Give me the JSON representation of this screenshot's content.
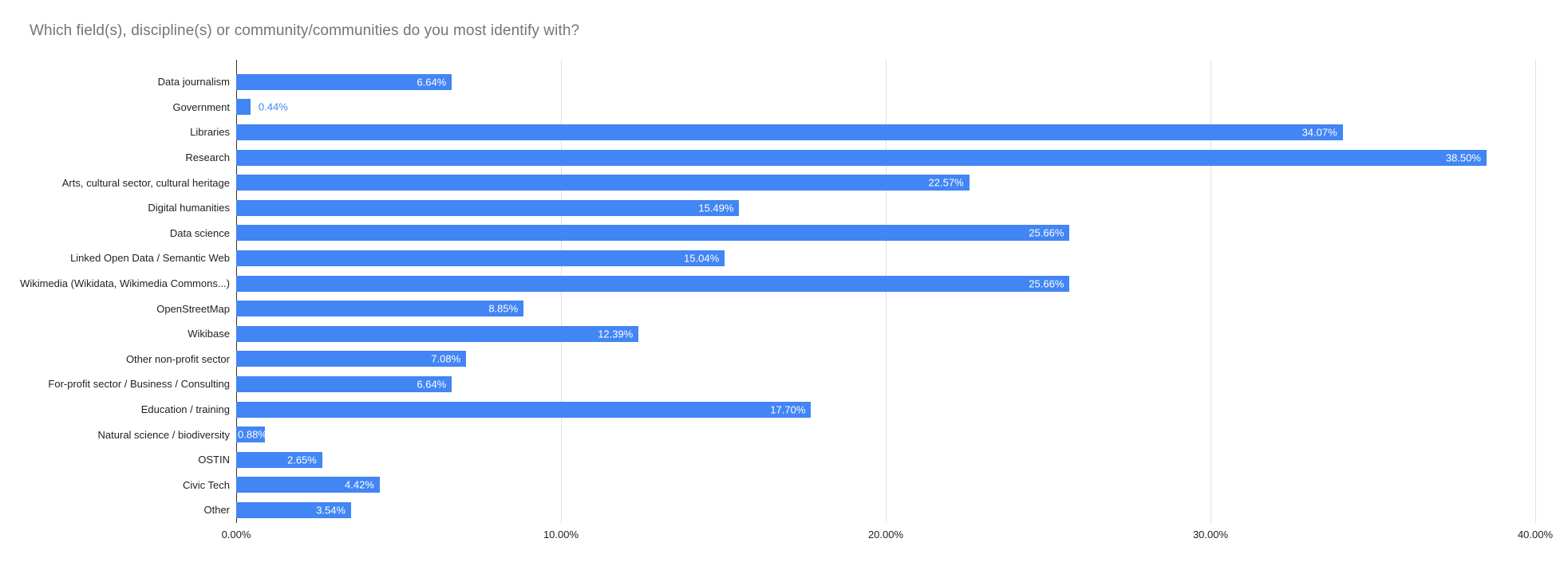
{
  "title": "Which field(s), discipline(s) or community/communities do you most identify with?",
  "colors": {
    "bar": "#4285f4",
    "title": "#757575",
    "gridline": "#e0e0e0",
    "zero_axis": "#333333",
    "inside_label": "#ffffff",
    "outside_label": "#4285f4"
  },
  "chart_data": {
    "type": "bar",
    "orientation": "horizontal",
    "title": "Which field(s), discipline(s) or community/communities do you most identify with?",
    "xlabel": "",
    "ylabel": "",
    "xlim": [
      0,
      40
    ],
    "grid": true,
    "legend": "none",
    "categories": [
      "Data journalism",
      "Government",
      "Libraries",
      "Research",
      "Arts, cultural sector, cultural heritage",
      "Digital humanities",
      "Data science",
      "Linked Open Data / Semantic Web",
      "Wikimedia (Wikidata, Wikimedia Commons...)",
      "OpenStreetMap",
      "Wikibase",
      "Other non-profit sector",
      "For-profit sector / Business / Consulting",
      "Education / training",
      "Natural science / biodiversity",
      "OSTIN",
      "Civic Tech",
      "Other"
    ],
    "values": [
      6.64,
      0.44,
      34.07,
      38.5,
      22.57,
      15.49,
      25.66,
      15.04,
      25.66,
      8.85,
      12.39,
      7.08,
      6.64,
      17.7,
      0.88,
      2.65,
      4.42,
      3.54
    ],
    "value_labels": [
      "6.64%",
      "0.44%",
      "34.07%",
      "38.50%",
      "22.57%",
      "15.49%",
      "25.66%",
      "15.04%",
      "25.66%",
      "8.85%",
      "12.39%",
      "7.08%",
      "6.64%",
      "17.70%",
      "0.88%",
      "2.65%",
      "4.42%",
      "3.54%"
    ],
    "x_ticks": [
      {
        "value": 0,
        "label": "0.00%"
      },
      {
        "value": 10,
        "label": "10.00%"
      },
      {
        "value": 20,
        "label": "20.00%"
      },
      {
        "value": 30,
        "label": "30.00%"
      },
      {
        "value": 40,
        "label": "40.00%"
      }
    ]
  }
}
